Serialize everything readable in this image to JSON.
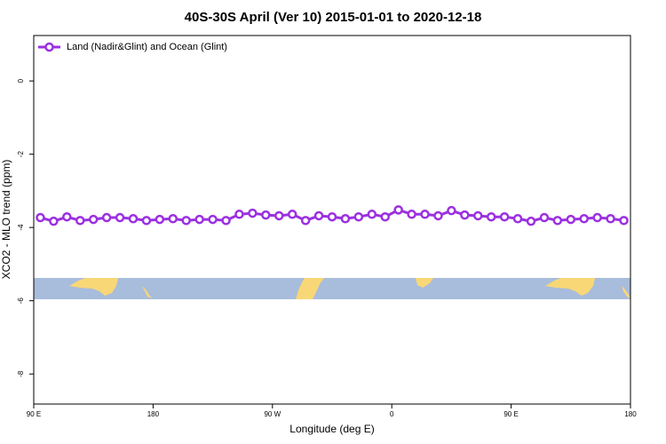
{
  "chart_data": {
    "type": "line",
    "title": "40S-30S April (Ver 10)   2015-01-01 to 2020-12-18",
    "x_label": "Longitude (deg E)",
    "y_label": "XCO2 - MLO trend (ppm)",
    "xlim": [
      90,
      540
    ],
    "xticks": [
      {
        "value": 90,
        "label": "90 E"
      },
      {
        "value": 180,
        "label": "180"
      },
      {
        "value": 270,
        "label": "90 W"
      },
      {
        "value": 360,
        "label": "0"
      },
      {
        "value": 450,
        "label": "90 E"
      },
      {
        "value": 540,
        "label": "180"
      }
    ],
    "ylim": [
      -8.82,
      1.24
    ],
    "yticks": [
      0,
      -2,
      -4,
      -6,
      -8
    ],
    "legend": "top-left",
    "x": [
      95,
      105,
      115,
      125,
      135,
      145,
      155,
      165,
      175,
      185,
      195,
      205,
      215,
      225,
      235,
      245,
      255,
      265,
      275,
      285,
      295,
      305,
      315,
      325,
      335,
      345,
      355,
      365,
      375,
      385,
      395,
      405,
      415,
      425,
      435,
      445,
      455,
      465,
      475,
      485,
      495,
      505,
      515,
      525,
      535
    ],
    "series": [
      {
        "name": "Land (Nadir&Glint) and Ocean (Glint)",
        "color": "#9b30e0",
        "values": [
          -3.73,
          -3.83,
          -3.71,
          -3.81,
          -3.78,
          -3.73,
          -3.73,
          -3.76,
          -3.81,
          -3.78,
          -3.76,
          -3.81,
          -3.78,
          -3.78,
          -3.81,
          -3.64,
          -3.61,
          -3.66,
          -3.68,
          -3.64,
          -3.81,
          -3.68,
          -3.71,
          -3.76,
          -3.71,
          -3.64,
          -3.71,
          -3.52,
          -3.64,
          -3.64,
          -3.68,
          -3.54,
          -3.66,
          -3.68,
          -3.71,
          -3.71,
          -3.76,
          -3.83,
          -3.73,
          -3.81,
          -3.78,
          -3.76,
          -3.73,
          -3.76,
          -3.81
        ]
      }
    ]
  }
}
